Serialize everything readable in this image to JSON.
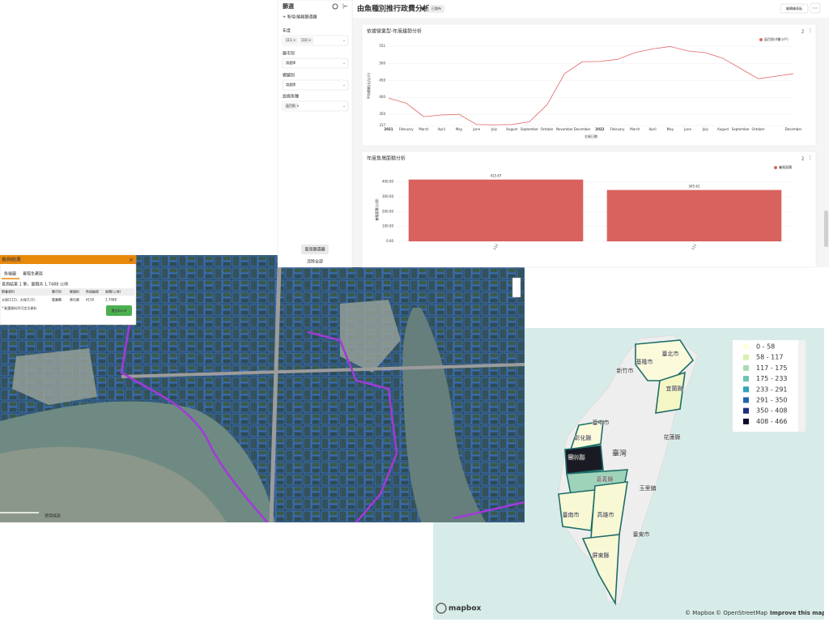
{
  "dashboard": {
    "title": "由魚種別推行政費分析",
    "status": "已發布",
    "edit_button": "編輯儀表板",
    "more": "⋯",
    "filter_badge": "2"
  },
  "filters": {
    "title": "篩選",
    "add": "+ 新增/編輯篩選器",
    "fields": [
      {
        "label": "年度",
        "chips": [
          "111 ×",
          "110 ×"
        ]
      },
      {
        "label": "縣市別",
        "placeholder": "請選擇"
      },
      {
        "label": "鄉鎮別",
        "placeholder": "請選擇"
      },
      {
        "label": "設施魚種",
        "chips": [
          "虱目魚 ×"
        ]
      }
    ],
    "apply": "套用篩選器",
    "clear": "清除全部"
  },
  "chart_data": [
    {
      "type": "line",
      "title": "依據營業型-年度趨勢分析",
      "x_label": "交易日期",
      "y_label": "平均價格(元/公斤)",
      "categories": [
        "2021",
        "February",
        "March",
        "April",
        "May",
        "June",
        "July",
        "August",
        "September",
        "October",
        "November",
        "December",
        "2022",
        "February",
        "March",
        "April",
        "May",
        "June",
        "July",
        "August",
        "September",
        "October",
        null,
        "December"
      ],
      "series": [
        {
          "name": "虱目魚(4種小戶)",
          "color": "#e06666",
          "values": [
            398,
            383,
            343,
            348,
            350,
            320,
            319,
            320,
            328,
            378,
            470,
            505,
            506,
            512,
            532,
            543,
            550,
            537,
            532,
            515,
            485,
            455,
            462,
            470
          ]
        }
      ],
      "ylim": [
        317,
        551
      ],
      "yticks": [
        317,
        350,
        400,
        450,
        500,
        551
      ],
      "grid": true
    },
    {
      "type": "bar",
      "title": "年度魚場面積分析",
      "y_label": "養殖面積(公頃)",
      "categories": [
        "112",
        "111"
      ],
      "series": [
        {
          "name": "養殖面積",
          "color": "#d9625e",
          "values": [
            415.67,
            345.61
          ],
          "value_labels": [
            "415.67",
            "345.61"
          ]
        }
      ],
      "ylim": [
        0,
        425
      ],
      "yticks": [
        {
          "value": 0,
          "label": "0.00"
        },
        {
          "value": 100,
          "label": "100.00"
        },
        {
          "value": 200,
          "label": "200.00"
        },
        {
          "value": 300,
          "label": "300.00"
        },
        {
          "value": 400,
          "label": "400.00"
        }
      ],
      "grid": true
    }
  ],
  "popup": {
    "title": "查詢結果",
    "close": "×",
    "tabs": [
      "魚塭圖",
      "養殖生產區"
    ],
    "summary": "查詢結果 1 筆，面積共 1.7488 公頃",
    "columns": [
      "飼養資料",
      "縣市別",
      "鄉鎮別",
      "魚塭編號",
      "面積(公頃)"
    ],
    "rows": [
      [
        "太保(112)、太保(111)",
        "嘉義縣",
        "東石鄉",
        "4150",
        "1.7488"
      ]
    ],
    "note": "* 點選資料列可定位資料",
    "export": "匯出Excel"
  },
  "satellite_map": {
    "terms": "使用條款"
  },
  "taiwan_map": {
    "legend": [
      {
        "label": "0 - 58",
        "color": "#ffffe0"
      },
      {
        "label": "58 - 117",
        "color": "#d9f0b0"
      },
      {
        "label": "117 - 175",
        "color": "#a8dcb4"
      },
      {
        "label": "175 - 233",
        "color": "#6cc3b4"
      },
      {
        "label": "233 - 291",
        "color": "#2fa3b8"
      },
      {
        "label": "291 - 350",
        "color": "#2166a8"
      },
      {
        "label": "350 - 408",
        "color": "#1c2f7a"
      },
      {
        "label": "408 - 466",
        "color": "#0b0b2a"
      }
    ],
    "places": [
      "臺北市",
      "基隆市",
      "新竹市",
      "宜蘭縣",
      "臺中市",
      "彰化縣",
      "臺灣",
      "花蓮縣",
      "雲林縣",
      "嘉義縣",
      "玉里鎮",
      "臺南市",
      "高雄市",
      "臺東市",
      "屏東縣"
    ],
    "logo": "mapbox",
    "attribution": [
      "© Mapbox",
      "© OpenStreetMap",
      "Improve this map"
    ]
  }
}
